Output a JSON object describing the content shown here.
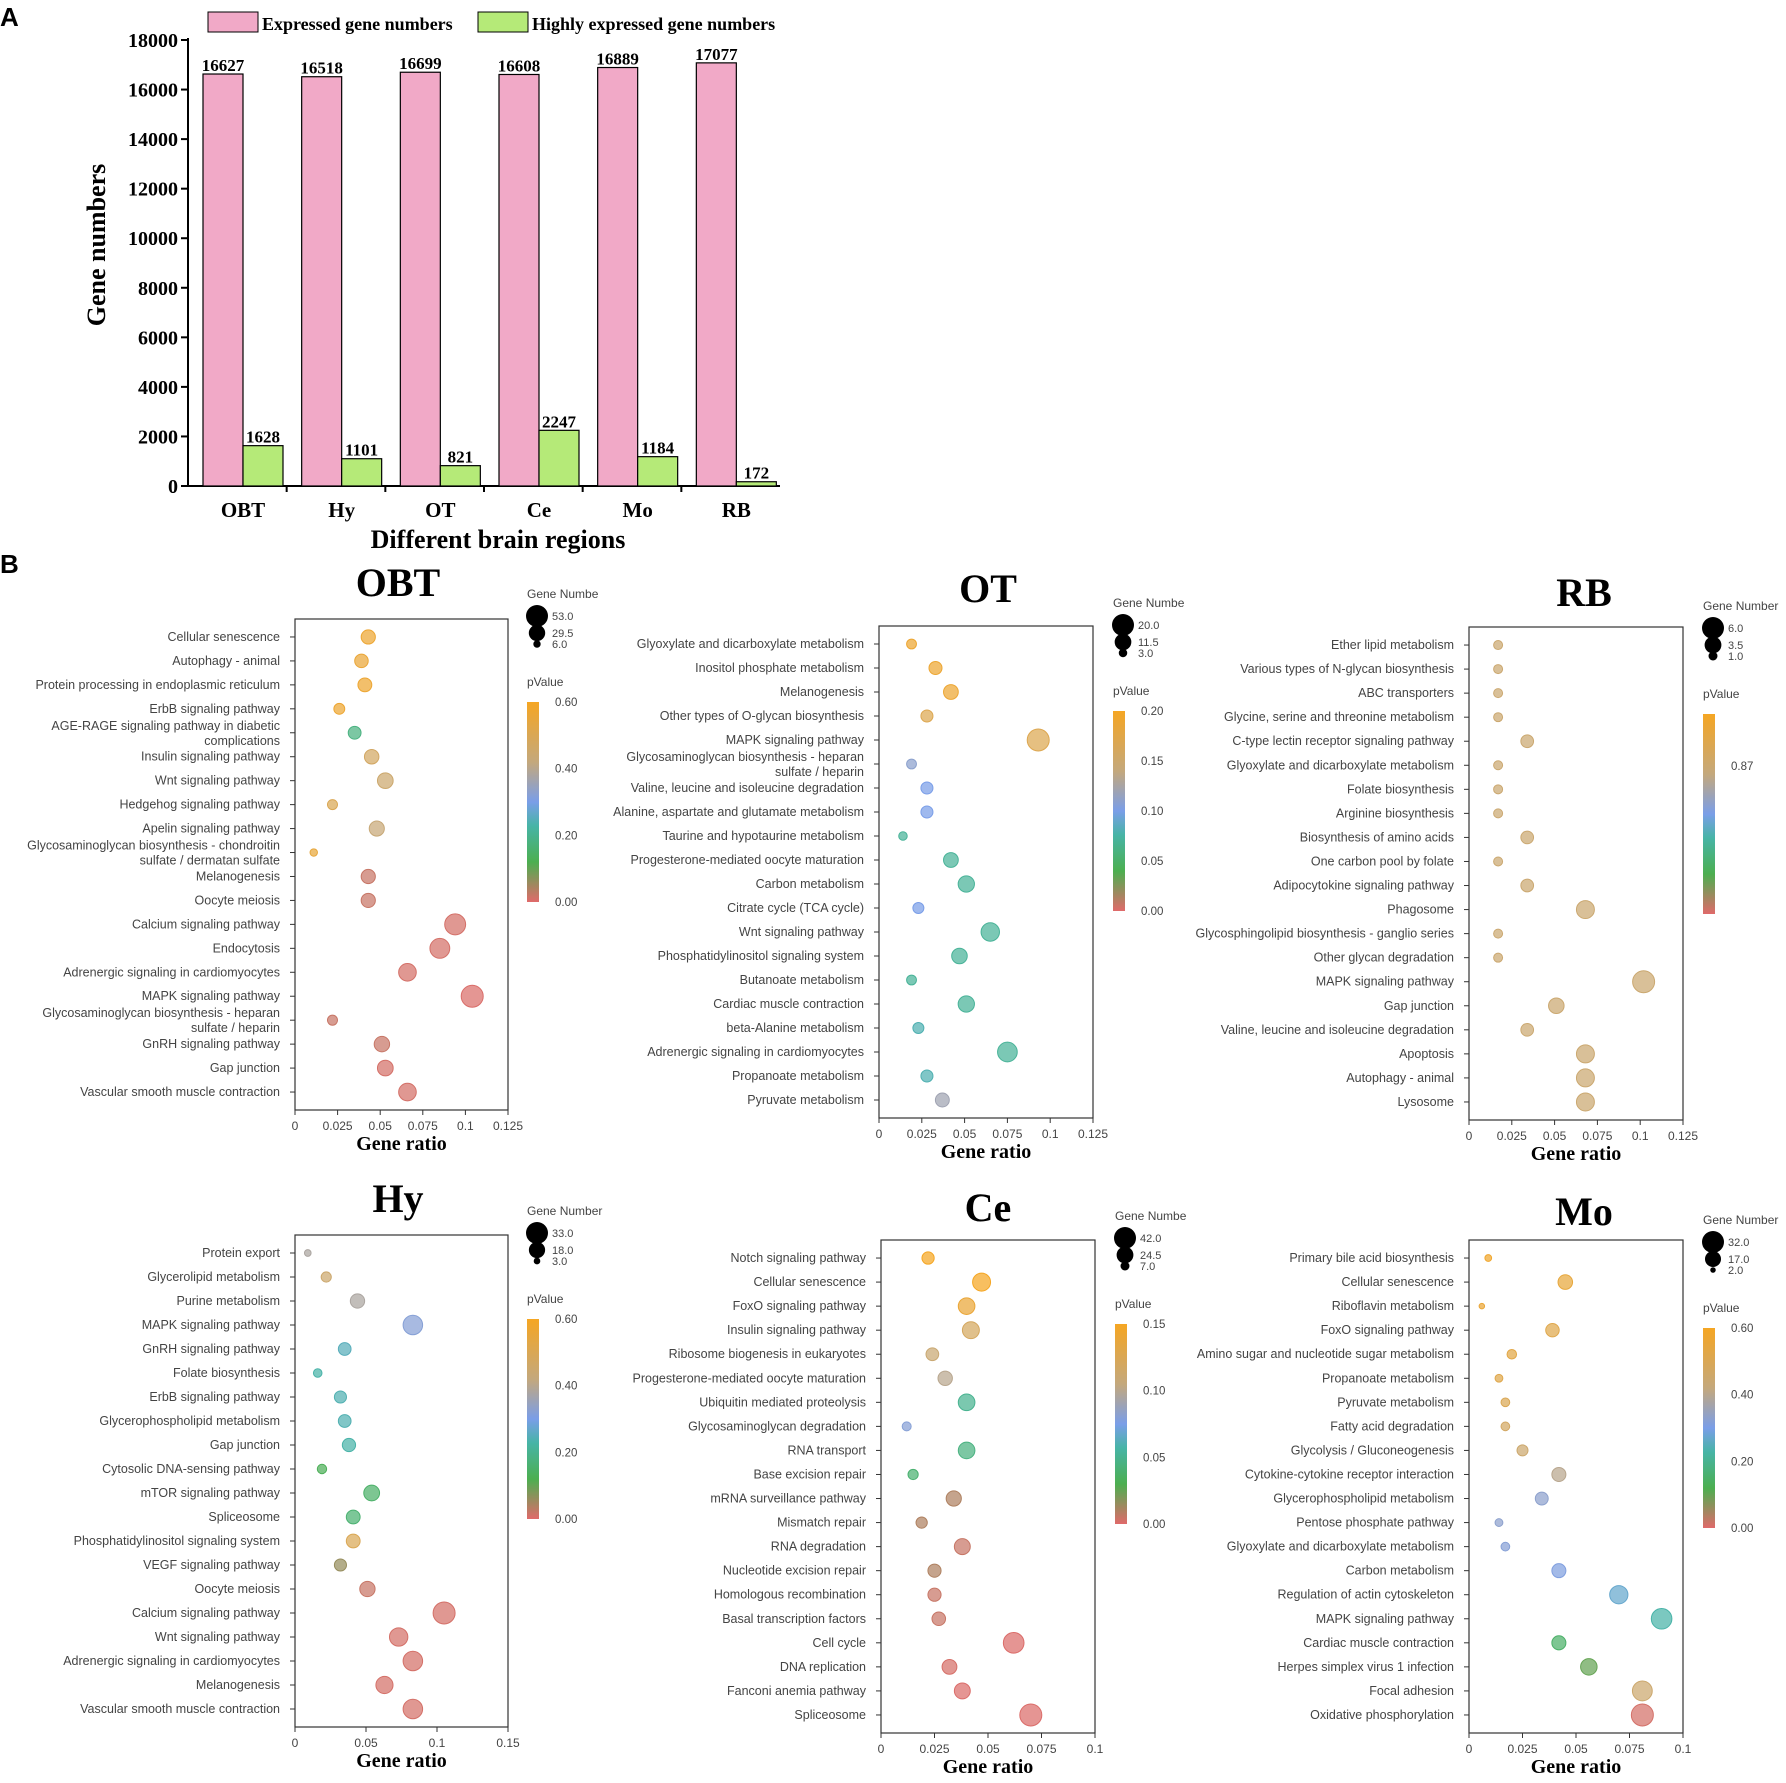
{
  "panel_labels": {
    "a": "A",
    "b": "B"
  },
  "bar_chart": {
    "type": "bar",
    "categories": [
      "OBT",
      "Hy",
      "OT",
      "Ce",
      "Mo",
      "RB"
    ],
    "series": [
      {
        "name": "Expressed gene numbers",
        "color": "#f1a9c7",
        "values": [
          16627,
          16518,
          16699,
          16608,
          16889,
          17077
        ]
      },
      {
        "name": "Highly expressed gene numbers",
        "color": "#b5ea78",
        "values": [
          1628,
          1101,
          821,
          2247,
          1184,
          172
        ]
      }
    ],
    "ylabel": "Gene numbers",
    "xlabel": "Different brain regions",
    "ylim": [
      0,
      18000
    ],
    "yticks": [
      0,
      2000,
      4000,
      6000,
      8000,
      10000,
      12000,
      14000,
      16000,
      18000
    ],
    "legend": "top"
  },
  "chart_data": [
    {
      "type": "scatter",
      "title": "OBT",
      "xlabel": "Gene ratio",
      "xlim": [
        0,
        0.125
      ],
      "xticks": [
        "0",
        "0.025",
        "0.05",
        "0.075",
        "0.1",
        "0.125"
      ],
      "xtick_values": [
        0,
        0.025,
        0.05,
        0.075,
        0.1,
        0.125
      ],
      "size_legend": {
        "title": "Gene Numbe",
        "labels": [
          "53.0",
          "29.5",
          "6.0"
        ],
        "values": [
          53,
          29.5,
          6
        ]
      },
      "color_legend": {
        "title": "pValue",
        "ticks": [
          "0.60",
          "0.40",
          "0.20",
          "0.00"
        ],
        "tick_values": [
          0.6,
          0.4,
          0.2,
          0.0
        ],
        "min": 0,
        "max": 0.6
      },
      "terms": [
        "Cellular senescence",
        "Autophagy - animal",
        "Protein processing in endoplasmic reticulum",
        "ErbB signaling pathway",
        "AGE-RAGE signaling pathway in diabetic|complications",
        "Insulin signaling pathway",
        "Wnt signaling pathway",
        "Hedgehog signaling pathway",
        "Apelin signaling pathway",
        "Glycosaminoglycan biosynthesis - chondroitin|sulfate / dermatan sulfate",
        "Melanogenesis",
        "Oocyte meiosis",
        "Calcium signaling pathway",
        "Endocytosis",
        "Adrenergic signaling in cardiomyocytes",
        "MAPK signaling pathway",
        "Glycosaminoglycan biosynthesis - heparan|sulfate / heparin",
        "GnRH signaling pathway",
        "Gap junction",
        "Vascular smooth muscle contraction"
      ],
      "gene_ratio": [
        0.043,
        0.039,
        0.041,
        0.026,
        0.035,
        0.045,
        0.053,
        0.022,
        0.048,
        0.011,
        0.043,
        0.043,
        0.094,
        0.085,
        0.066,
        0.104,
        0.022,
        0.051,
        0.053,
        0.066
      ],
      "gene_number": [
        22,
        20,
        21,
        13,
        18,
        23,
        27,
        11,
        25,
        6,
        22,
        22,
        48,
        43,
        34,
        53,
        11,
        26,
        27,
        34
      ],
      "pvalue": [
        0.57,
        0.56,
        0.57,
        0.57,
        0.18,
        0.47,
        0.45,
        0.5,
        0.43,
        0.55,
        0.02,
        0.02,
        0.01,
        0.01,
        0.01,
        0.005,
        0.02,
        0.02,
        0.01,
        0.01
      ]
    },
    {
      "type": "scatter",
      "title": "OT",
      "xlabel": "Gene ratio",
      "xlim": [
        0,
        0.125
      ],
      "xticks": [
        "0",
        "0.025",
        "0.05",
        "0.075",
        "0.1",
        "0.125"
      ],
      "xtick_values": [
        0,
        0.025,
        0.05,
        0.075,
        0.1,
        0.125
      ],
      "size_legend": {
        "title": "Gene Numbe",
        "labels": [
          "20.0",
          "11.5",
          "3.0"
        ],
        "values": [
          20,
          11.5,
          3
        ]
      },
      "color_legend": {
        "title": "pValue",
        "ticks": [
          "0.20",
          "0.15",
          "0.10",
          "0.05",
          "0.00"
        ],
        "tick_values": [
          0.2,
          0.15,
          0.1,
          0.05,
          0.0
        ],
        "min": 0,
        "max": 0.2
      },
      "terms": [
        "Glyoxylate and dicarboxylate metabolism",
        "Inositol phosphate metabolism",
        "Melanogenesis",
        "Other types of O-glycan biosynthesis",
        "MAPK signaling pathway",
        "Glycosaminoglycan biosynthesis - heparan|sulfate / heparin",
        "Valine, leucine and isoleucine degradation",
        "Alanine, aspartate and glutamate metabolism",
        "Taurine and hypotaurine metabolism",
        "Progesterone-mediated oocyte maturation",
        "Carbon metabolism",
        "Citrate cycle (TCA cycle)",
        "Wnt signaling pathway",
        "Phosphatidylinositol signaling system",
        "Butanoate metabolism",
        "Cardiac muscle contraction",
        "beta-Alanine metabolism",
        "Adrenergic signaling in cardiomyocytes",
        "Propanoate metabolism",
        "Pyruvate metabolism"
      ],
      "gene_ratio": [
        0.019,
        0.033,
        0.042,
        0.028,
        0.093,
        0.019,
        0.028,
        0.028,
        0.014,
        0.042,
        0.051,
        0.023,
        0.065,
        0.047,
        0.019,
        0.051,
        0.023,
        0.075,
        0.028,
        0.037
      ],
      "gene_number": [
        4,
        7,
        9,
        6,
        20,
        4,
        6,
        6,
        3,
        9,
        11,
        5,
        14,
        10,
        4,
        11,
        5,
        16,
        6,
        8
      ],
      "pvalue": [
        0.19,
        0.19,
        0.19,
        0.17,
        0.17,
        0.11,
        0.1,
        0.1,
        0.07,
        0.07,
        0.07,
        0.1,
        0.07,
        0.07,
        0.07,
        0.07,
        0.08,
        0.07,
        0.08,
        0.12
      ]
    },
    {
      "type": "scatter",
      "title": "RB",
      "xlabel": "Gene ratio",
      "xlim": [
        0,
        0.125
      ],
      "xticks": [
        "0",
        "0.025",
        "0.05",
        "0.075",
        "0.1",
        "0.125"
      ],
      "xtick_values": [
        0,
        0.025,
        0.05,
        0.075,
        0.1,
        0.125
      ],
      "size_legend": {
        "title": "Gene Number",
        "labels": [
          "6.0",
          "3.5",
          "1.0"
        ],
        "values": [
          6,
          3.5,
          1
        ]
      },
      "color_legend": {
        "title": "pValue",
        "ticks": [
          "0.87"
        ],
        "tick_values": [
          0.87
        ],
        "min": 0.5,
        "max": 1.0
      },
      "terms": [
        "Ether lipid metabolism",
        "Various types of N-glycan biosynthesis",
        "ABC transporters",
        "Glycine, serine and threonine metabolism",
        "C-type lectin receptor signaling pathway",
        "Glyoxylate and dicarboxylate metabolism",
        "Folate biosynthesis",
        "Arginine biosynthesis",
        "Biosynthesis of amino acids",
        "One carbon pool by folate",
        "Adipocytokine signaling pathway",
        "Phagosome",
        "Glycosphingolipid biosynthesis - ganglio series",
        "Other glycan degradation",
        "MAPK signaling pathway",
        "Gap junction",
        "Valine, leucine and isoleucine degradation",
        "Apoptosis",
        "Autophagy - animal",
        "Lysosome"
      ],
      "gene_ratio": [
        0.017,
        0.017,
        0.017,
        0.017,
        0.034,
        0.017,
        0.017,
        0.017,
        0.034,
        0.017,
        0.034,
        0.068,
        0.017,
        0.017,
        0.102,
        0.051,
        0.034,
        0.068,
        0.068,
        0.068
      ],
      "gene_number": [
        1,
        1,
        1,
        1,
        2,
        1,
        1,
        1,
        2,
        1,
        2,
        4,
        1,
        1,
        6,
        3,
        2,
        4,
        4,
        4
      ],
      "pvalue": [
        0.87,
        0.87,
        0.87,
        0.87,
        0.87,
        0.87,
        0.87,
        0.87,
        0.87,
        0.87,
        0.87,
        0.87,
        0.87,
        0.87,
        0.87,
        0.87,
        0.87,
        0.87,
        0.87,
        0.87
      ]
    },
    {
      "type": "scatter",
      "title": "Hy",
      "xlabel": "Gene ratio",
      "xlim": [
        0,
        0.15
      ],
      "xticks": [
        "0",
        "0.05",
        "0.1",
        "0.15"
      ],
      "xtick_values": [
        0,
        0.05,
        0.1,
        0.15
      ],
      "size_legend": {
        "title": "Gene Number",
        "labels": [
          "33.0",
          "18.0",
          "3.0"
        ],
        "values": [
          33,
          18,
          3
        ]
      },
      "color_legend": {
        "title": "pValue",
        "ticks": [
          "0.60",
          "0.40",
          "0.20",
          "0.00"
        ],
        "tick_values": [
          0.6,
          0.4,
          0.2,
          0.0
        ],
        "min": 0,
        "max": 0.6
      },
      "terms": [
        "Protein export",
        "Glycerolipid metabolism",
        "Purine metabolism",
        "MAPK signaling pathway",
        "GnRH signaling pathway",
        "Folate biosynthesis",
        "ErbB signaling pathway",
        "Glycerophospholipid metabolism",
        "Gap junction",
        "Cytosolic DNA-sensing pathway",
        "mTOR signaling pathway",
        "Spliceosome",
        "Phosphatidylinositol signaling system",
        "VEGF signaling pathway",
        "Oocyte meiosis",
        "Calcium signaling pathway",
        "Wnt signaling pathway",
        "Adrenergic signaling in cardiomyocytes",
        "Melanogenesis",
        "Vascular smooth muscle contraction"
      ],
      "gene_ratio": [
        0.009,
        0.022,
        0.044,
        0.083,
        0.035,
        0.016,
        0.032,
        0.035,
        0.038,
        0.019,
        0.054,
        0.041,
        0.041,
        0.032,
        0.051,
        0.105,
        0.073,
        0.083,
        0.063,
        0.083
      ],
      "gene_number": [
        3,
        7,
        14,
        26,
        11,
        5,
        10,
        11,
        12,
        6,
        17,
        13,
        13,
        10,
        16,
        33,
        23,
        26,
        20,
        26
      ],
      "pvalue": [
        0.38,
        0.45,
        0.38,
        0.32,
        0.25,
        0.23,
        0.24,
        0.24,
        0.23,
        0.13,
        0.15,
        0.16,
        0.5,
        0.06,
        0.02,
        0.01,
        0.01,
        0.01,
        0.01,
        0.01
      ]
    },
    {
      "type": "scatter",
      "title": "Ce",
      "xlabel": "Gene ratio",
      "xlim": [
        0,
        0.1
      ],
      "xticks": [
        "0",
        "0.025",
        "0.05",
        "0.075",
        "0.1"
      ],
      "xtick_values": [
        0,
        0.025,
        0.05,
        0.075,
        0.1
      ],
      "size_legend": {
        "title": "Gene Numbe",
        "labels": [
          "42.0",
          "24.5",
          "7.0"
        ],
        "values": [
          42,
          24.5,
          7
        ]
      },
      "color_legend": {
        "title": "pValue",
        "ticks": [
          "0.15",
          "0.10",
          "0.05",
          "0.00"
        ],
        "tick_values": [
          0.15,
          0.1,
          0.05,
          0.0
        ],
        "min": 0,
        "max": 0.15
      },
      "terms": [
        "Notch signaling pathway",
        "Cellular senescence",
        "FoxO signaling pathway",
        "Insulin signaling pathway",
        "Ribosome biogenesis in eukaryotes",
        "Progesterone-mediated oocyte maturation",
        "Ubiquitin mediated proteolysis",
        "Glycosaminoglycan degradation",
        "RNA transport",
        "Base excision repair",
        "mRNA surveillance pathway",
        "Mismatch repair",
        "RNA degradation",
        "Nucleotide excision repair",
        "Homologous recombination",
        "Basal transcription factors",
        "Cell cycle",
        "DNA replication",
        "Fanconi anemia pathway",
        "Spliceosome"
      ],
      "gene_ratio": [
        0.022,
        0.047,
        0.04,
        0.042,
        0.024,
        0.03,
        0.04,
        0.012,
        0.04,
        0.015,
        0.034,
        0.019,
        0.038,
        0.025,
        0.025,
        0.027,
        0.062,
        0.032,
        0.038,
        0.07
      ],
      "gene_number": [
        13,
        28,
        24,
        25,
        14,
        18,
        24,
        7,
        24,
        9,
        20,
        11,
        22,
        15,
        15,
        16,
        37,
        19,
        22,
        42
      ],
      "pvalue": [
        0.15,
        0.15,
        0.14,
        0.12,
        0.11,
        0.1,
        0.05,
        0.08,
        0.045,
        0.04,
        0.01,
        0.01,
        0.005,
        0.01,
        0.005,
        0.005,
        0.001,
        0.002,
        0.001,
        0.001
      ]
    },
    {
      "type": "scatter",
      "title": "Mo",
      "xlabel": "Gene ratio",
      "xlim": [
        0,
        0.1
      ],
      "xticks": [
        "0",
        "0.025",
        "0.05",
        "0.075",
        "0.1"
      ],
      "xtick_values": [
        0,
        0.025,
        0.05,
        0.075,
        0.1
      ],
      "size_legend": {
        "title": "Gene Number",
        "labels": [
          "32.0",
          "17.0",
          "2.0"
        ],
        "values": [
          32,
          17,
          2
        ]
      },
      "color_legend": {
        "title": "pValue",
        "ticks": [
          "0.60",
          "0.40",
          "0.20",
          "0.00"
        ],
        "tick_values": [
          0.6,
          0.4,
          0.2,
          0.0
        ],
        "min": 0,
        "max": 0.6
      },
      "terms": [
        "Primary bile acid biosynthesis",
        "Cellular senescence",
        "Riboflavin metabolism",
        "FoxO signaling pathway",
        "Amino sugar and nucleotide sugar metabolism",
        "Propanoate metabolism",
        "Pyruvate metabolism",
        "Fatty acid degradation",
        "Glycolysis / Gluconeogenesis",
        "Cytokine-cytokine receptor interaction",
        "Glycerophospholipid metabolism",
        "Pentose phosphate pathway",
        "Glyoxylate and dicarboxylate metabolism",
        "Carbon metabolism",
        "Regulation of actin cytoskeleton",
        "MAPK signaling pathway",
        "Cardiac muscle contraction",
        "Herpes simplex virus 1 infection",
        "Focal adhesion",
        "Oxidative phosphorylation"
      ],
      "gene_ratio": [
        0.009,
        0.045,
        0.006,
        0.039,
        0.02,
        0.014,
        0.017,
        0.017,
        0.025,
        0.042,
        0.034,
        0.014,
        0.017,
        0.042,
        0.07,
        0.09,
        0.042,
        0.056,
        0.081,
        0.081
      ],
      "gene_number": [
        3,
        14,
        2,
        12,
        6,
        4,
        5,
        5,
        8,
        13,
        11,
        4,
        5,
        13,
        22,
        28,
        13,
        18,
        26,
        32
      ],
      "pvalue": [
        0.58,
        0.55,
        0.56,
        0.52,
        0.53,
        0.52,
        0.5,
        0.47,
        0.45,
        0.4,
        0.33,
        0.33,
        0.32,
        0.31,
        0.27,
        0.23,
        0.15,
        0.1,
        0.45,
        0.01
      ]
    }
  ]
}
